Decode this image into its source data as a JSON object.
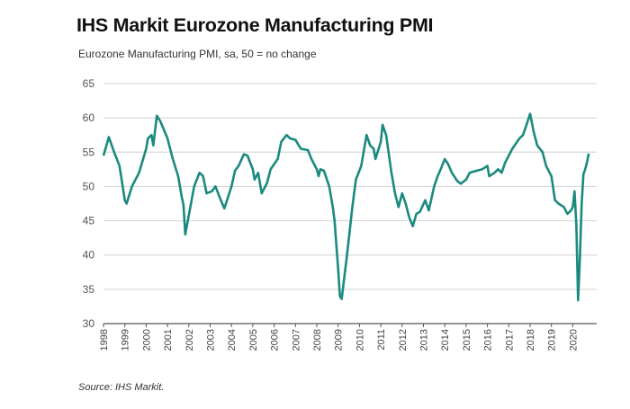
{
  "chart_data": {
    "type": "line",
    "title": "IHS Markit Eurozone Manufacturing PMI",
    "subtitle": "Eurozone Manufacturing PMI, sa, 50 = no change",
    "source": "Source: IHS Markit.",
    "xlabel": "",
    "ylabel": "",
    "ylim": [
      30,
      65
    ],
    "yticks": [
      30,
      35,
      40,
      45,
      50,
      55,
      60,
      65
    ],
    "xticks": [
      "1998",
      "1999",
      "2000",
      "2001",
      "2002",
      "2003",
      "2004",
      "2005",
      "2006",
      "2007",
      "2008",
      "2009",
      "2010",
      "2011",
      "2012",
      "2013",
      "2014",
      "2015",
      "2016",
      "2017",
      "2018",
      "2019",
      "2020"
    ],
    "grid": true,
    "legend": "none",
    "line_color": "#1a8a7e",
    "series": [
      {
        "x": [
          "1998-01",
          "1998-04",
          "1998-07",
          "1998-10",
          "1999-01",
          "1999-02",
          "1999-05",
          "1999-09",
          "2000-01",
          "2000-02",
          "2000-04",
          "2000-05",
          "2000-07",
          "2000-09",
          "2001-01",
          "2001-04",
          "2001-07",
          "2001-09",
          "2001-10",
          "2001-11",
          "2002-04",
          "2002-07",
          "2002-09",
          "2002-11",
          "2003-02",
          "2003-04",
          "2003-07",
          "2003-09",
          "2004-01",
          "2004-03",
          "2004-05",
          "2004-08",
          "2004-10",
          "2005-01",
          "2005-02",
          "2005-04",
          "2005-06",
          "2005-09",
          "2005-11",
          "2006-03",
          "2006-05",
          "2006-08",
          "2006-10",
          "2007-01",
          "2007-04",
          "2007-08",
          "2007-10",
          "2008-01",
          "2008-02",
          "2008-03",
          "2008-05",
          "2008-08",
          "2008-10",
          "2008-11",
          "2009-01",
          "2009-02",
          "2009-03",
          "2009-06",
          "2009-09",
          "2009-11",
          "2010-02",
          "2010-04",
          "2010-05",
          "2010-07",
          "2010-09",
          "2010-10",
          "2011-01",
          "2011-02",
          "2011-04",
          "2011-07",
          "2011-09",
          "2011-11",
          "2012-01",
          "2012-03",
          "2012-05",
          "2012-07",
          "2012-09",
          "2012-11",
          "2013-02",
          "2013-04",
          "2013-07",
          "2013-09",
          "2013-11",
          "2014-01",
          "2014-03",
          "2014-05",
          "2014-08",
          "2014-10",
          "2015-01",
          "2015-03",
          "2015-07",
          "2015-10",
          "2016-01",
          "2016-02",
          "2016-05",
          "2016-07",
          "2016-09",
          "2016-11",
          "2017-03",
          "2017-07",
          "2017-09",
          "2017-11",
          "2018-01",
          "2018-03",
          "2018-05",
          "2018-08",
          "2018-10",
          "2019-01",
          "2019-03",
          "2019-05",
          "2019-08",
          "2019-10",
          "2019-12",
          "2020-01",
          "2020-02",
          "2020-03",
          "2020-04",
          "2020-05",
          "2020-06",
          "2020-07",
          "2020-08",
          "2020-09",
          "2020-10"
        ],
        "values": [
          54.5,
          57.2,
          55.0,
          53.0,
          48.0,
          47.5,
          50.0,
          52.0,
          55.5,
          57.0,
          57.5,
          56.0,
          60.3,
          59.5,
          57.0,
          54.0,
          51.5,
          48.5,
          47.3,
          43.0,
          50.0,
          52.0,
          51.5,
          49.0,
          49.3,
          50.0,
          48.0,
          46.8,
          50.0,
          52.3,
          53.0,
          54.7,
          54.5,
          52.5,
          51.0,
          52.0,
          49.0,
          50.5,
          52.5,
          54.0,
          56.5,
          57.5,
          57.0,
          56.8,
          55.5,
          55.3,
          54.0,
          52.5,
          51.5,
          52.5,
          52.3,
          50.0,
          47.0,
          45.0,
          38.0,
          34.0,
          33.6,
          40.0,
          47.0,
          51.0,
          53.0,
          56.0,
          57.5,
          56.0,
          55.5,
          54.0,
          56.5,
          59.0,
          57.5,
          52.0,
          49.0,
          47.0,
          49.0,
          47.5,
          45.5,
          44.2,
          46.0,
          46.3,
          48.0,
          46.5,
          50.0,
          51.5,
          52.7,
          54.0,
          53.2,
          52.0,
          50.8,
          50.4,
          51.0,
          52.0,
          52.3,
          52.5,
          53.0,
          51.5,
          52.0,
          52.5,
          52.0,
          53.5,
          55.5,
          57.0,
          57.5,
          59.0,
          60.6,
          58.0,
          56.0,
          55.0,
          53.0,
          51.5,
          48.0,
          47.5,
          47.0,
          46.0,
          46.5,
          47.0,
          49.3,
          44.5,
          33.4,
          39.5,
          47.4,
          51.8,
          52.5,
          53.5,
          54.8
        ]
      }
    ]
  }
}
